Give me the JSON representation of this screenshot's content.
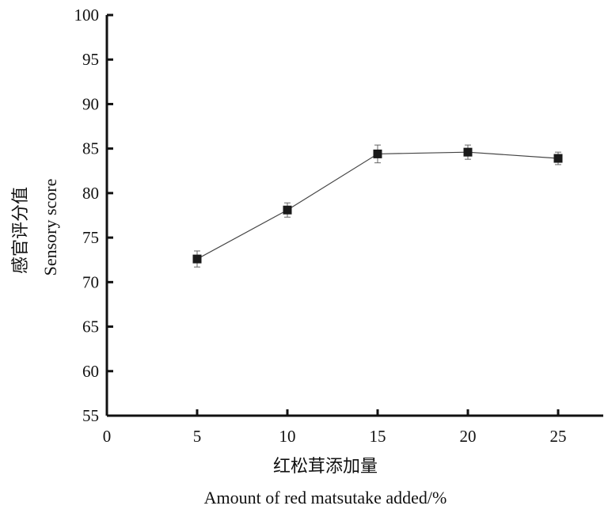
{
  "chart_data": {
    "type": "line",
    "x": [
      5,
      10,
      15,
      20,
      25
    ],
    "series": [
      {
        "values": [
          72.6,
          78.1,
          84.4,
          84.6,
          83.9
        ],
        "errors": [
          0.9,
          0.8,
          1.0,
          0.8,
          0.7
        ],
        "color": "#1a1a1a",
        "marker": "square"
      }
    ],
    "xlabel_cn": "红松茸添加量",
    "xlabel": "Amount of red matsutake added/%",
    "ylabel_cn": "感官评分值",
    "ylabel": "Sensory score",
    "xlim": [
      0,
      27.5
    ],
    "ylim": [
      55,
      100
    ],
    "xticks": [
      0,
      5,
      10,
      15,
      20,
      25
    ],
    "yticks": [
      55,
      60,
      65,
      70,
      75,
      80,
      85,
      90,
      95,
      100
    ],
    "xtick_labels": [
      "0",
      "5",
      "10",
      "15",
      "20",
      "25"
    ],
    "ytick_labels": [
      "55",
      "60",
      "65",
      "70",
      "75",
      "80",
      "85",
      "90",
      "95",
      "100"
    ],
    "grid": false
  }
}
